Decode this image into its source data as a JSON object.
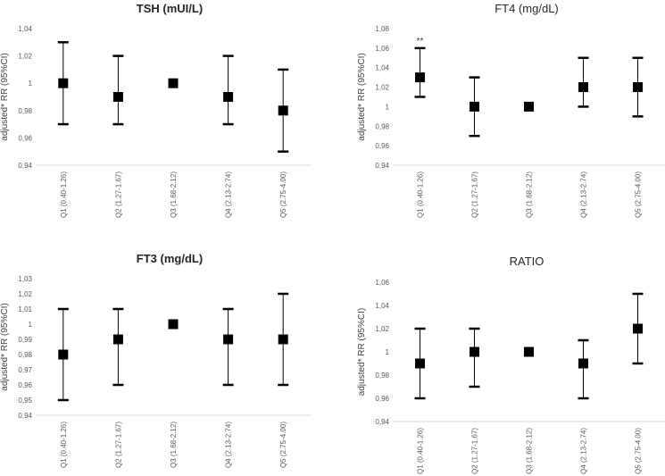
{
  "chart_data": [
    {
      "type": "scatter",
      "title": "TSH (mUI/L)",
      "xlabel": "",
      "ylabel": "adjusted* RR (95%CI)",
      "categories": [
        "Q1 (0.40-1.26)",
        "Q2 (1.27-1.67)",
        "Q3 (1.68-2.12)",
        "Q4 (2.13-2.74)",
        "Q5 (2.75-4.00)"
      ],
      "series": [
        {
          "values": [
            1.0,
            0.99,
            1.0,
            0.99,
            0.98
          ],
          "ci_lower": [
            0.97,
            0.97,
            null,
            0.97,
            0.95
          ],
          "ci_upper": [
            1.03,
            1.02,
            null,
            1.02,
            1.01
          ]
        }
      ],
      "ylim": [
        0.94,
        1.04
      ],
      "yticks": [
        "0,94",
        "0,96",
        "0,98",
        "1",
        "1,02",
        "1,04"
      ],
      "annotations": [],
      "grid": false
    },
    {
      "type": "scatter",
      "title": "FT4 (mg/dL)",
      "xlabel": "",
      "ylabel": "adjusted* RR (95%CI)",
      "categories": [
        "Q1 (0.40-1.26)",
        "Q2 (1.27-1.67)",
        "Q3 (1.68-2.12)",
        "Q4 (2.13-2.74)",
        "Q5 (2.75-4.00)"
      ],
      "series": [
        {
          "values": [
            1.03,
            1.0,
            1.0,
            1.02,
            1.02
          ],
          "ci_lower": [
            1.01,
            0.97,
            null,
            1.0,
            0.99
          ],
          "ci_upper": [
            1.06,
            1.03,
            null,
            1.05,
            1.05
          ]
        }
      ],
      "ylim": [
        0.94,
        1.08
      ],
      "yticks": [
        "0,94",
        "0,96",
        "0,98",
        "1",
        "1,02",
        "1,04",
        "1,06",
        "1,08"
      ],
      "annotations": [
        {
          "text": "**",
          "category": "Q1 (0.40-1.26)"
        }
      ],
      "grid": false
    },
    {
      "type": "scatter",
      "title": "FT3 (mg/dL)",
      "xlabel": "",
      "ylabel": "adjusted* RR (95%CI)",
      "categories": [
        "Q1 (0.40-1.26)",
        "Q2 (1.27-1.67)",
        "Q3 (1.68-2.12)",
        "Q4 (2.13-2.74)",
        "Q5 (2.75-4.00)"
      ],
      "series": [
        {
          "values": [
            0.98,
            0.99,
            1.0,
            0.99,
            0.99
          ],
          "ci_lower": [
            0.95,
            0.96,
            null,
            0.96,
            0.96
          ],
          "ci_upper": [
            1.01,
            1.01,
            null,
            1.01,
            1.02
          ]
        }
      ],
      "ylim": [
        0.94,
        1.03
      ],
      "yticks": [
        "0,94",
        "0,95",
        "0,96",
        "0,97",
        "0,98",
        "0,99",
        "1",
        "1,01",
        "1,02",
        "1,03"
      ],
      "annotations": [],
      "grid": false
    },
    {
      "type": "scatter",
      "title": "RATIO",
      "xlabel": "",
      "ylabel": "adjusted* RR (95%CI)",
      "categories": [
        "Q1 (0.40-1.26)",
        "Q2 (1.27-1.67)",
        "Q3 (1.68-2.12)",
        "Q4 (2.13-2.74)",
        "Q5 (2.75-4.00)"
      ],
      "series": [
        {
          "values": [
            0.99,
            1.0,
            1.0,
            0.99,
            1.02
          ],
          "ci_lower": [
            0.96,
            0.97,
            null,
            0.96,
            0.99
          ],
          "ci_upper": [
            1.02,
            1.02,
            null,
            1.01,
            1.05
          ]
        }
      ],
      "ylim": [
        0.94,
        1.06
      ],
      "yticks": [
        "0,94",
        "0,96",
        "0,98",
        "1",
        "1,02",
        "1,04",
        "1,06"
      ],
      "annotations": [],
      "grid": false
    }
  ]
}
